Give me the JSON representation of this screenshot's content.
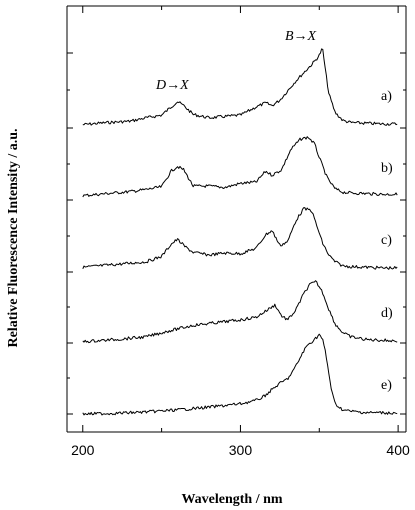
{
  "chart_data": {
    "type": "line",
    "xlabel": "Wavelength / nm",
    "ylabel": "Relative Fluorescence Intensity / a.u.",
    "xlim": [
      190,
      405
    ],
    "xticks": [
      "200",
      "300",
      "400"
    ],
    "annotations": [
      {
        "text": "B→X",
        "x": 303
      },
      {
        "text": "D→X",
        "x": 260
      }
    ],
    "series": [
      {
        "name": "a)",
        "x": [
          200,
          215,
          230,
          240,
          250,
          256,
          260,
          264,
          270,
          280,
          290,
          300,
          310,
          316,
          320,
          325,
          330,
          335,
          340,
          345,
          348,
          350,
          352,
          354,
          356,
          360,
          365,
          370,
          380,
          390,
          400
        ],
        "y": [
          0.02,
          0.05,
          0.07,
          0.12,
          0.16,
          0.28,
          0.36,
          0.3,
          0.17,
          0.12,
          0.14,
          0.16,
          0.28,
          0.34,
          0.3,
          0.38,
          0.52,
          0.66,
          0.78,
          0.9,
          0.98,
          1.04,
          1.15,
          0.8,
          0.48,
          0.2,
          0.08,
          0.05,
          0.04,
          0.03,
          0.03
        ]
      },
      {
        "name": "b)",
        "x": [
          200,
          215,
          230,
          240,
          250,
          256,
          260,
          264,
          270,
          280,
          290,
          300,
          310,
          316,
          320,
          326,
          332,
          338,
          343,
          347,
          350,
          355,
          360,
          365,
          370,
          380,
          390,
          400
        ],
        "y": [
          0.02,
          0.05,
          0.08,
          0.11,
          0.15,
          0.38,
          0.45,
          0.4,
          0.16,
          0.16,
          0.14,
          0.2,
          0.22,
          0.38,
          0.32,
          0.4,
          0.7,
          0.85,
          0.88,
          0.78,
          0.58,
          0.28,
          0.12,
          0.07,
          0.06,
          0.05,
          0.04,
          0.04
        ]
      },
      {
        "name": "c)",
        "x": [
          200,
          215,
          230,
          240,
          250,
          256,
          260,
          265,
          270,
          280,
          290,
          300,
          310,
          316,
          320,
          325,
          330,
          335,
          340,
          345,
          348,
          352,
          356,
          360,
          365,
          370,
          380,
          390,
          400
        ],
        "y": [
          0.04,
          0.07,
          0.1,
          0.12,
          0.2,
          0.38,
          0.45,
          0.34,
          0.26,
          0.22,
          0.25,
          0.24,
          0.32,
          0.52,
          0.58,
          0.36,
          0.42,
          0.72,
          0.9,
          0.88,
          0.68,
          0.4,
          0.22,
          0.12,
          0.06,
          0.05,
          0.04,
          0.03,
          0.03
        ]
      },
      {
        "name": "d)",
        "x": [
          200,
          220,
          240,
          255,
          270,
          285,
          300,
          310,
          318,
          322,
          326,
          330,
          335,
          340,
          344,
          348,
          352,
          356,
          360,
          365,
          370,
          380,
          390,
          400
        ],
        "y": [
          0.02,
          0.05,
          0.09,
          0.18,
          0.26,
          0.3,
          0.34,
          0.38,
          0.5,
          0.56,
          0.4,
          0.34,
          0.48,
          0.72,
          0.86,
          0.9,
          0.75,
          0.5,
          0.28,
          0.15,
          0.09,
          0.05,
          0.04,
          0.03
        ]
      },
      {
        "name": "e)",
        "x": [
          200,
          220,
          240,
          260,
          280,
          300,
          310,
          315,
          320,
          325,
          330,
          333,
          336,
          339,
          342,
          345,
          348,
          350,
          352,
          354,
          356,
          358,
          360,
          365,
          370,
          380,
          390,
          400
        ],
        "y": [
          0.0,
          0.01,
          0.03,
          0.06,
          0.1,
          0.15,
          0.2,
          0.26,
          0.36,
          0.45,
          0.52,
          0.62,
          0.74,
          0.88,
          1.0,
          1.06,
          1.12,
          1.17,
          1.1,
          0.9,
          0.6,
          0.32,
          0.15,
          0.06,
          0.04,
          0.02,
          0.02,
          0.01
        ]
      }
    ]
  }
}
